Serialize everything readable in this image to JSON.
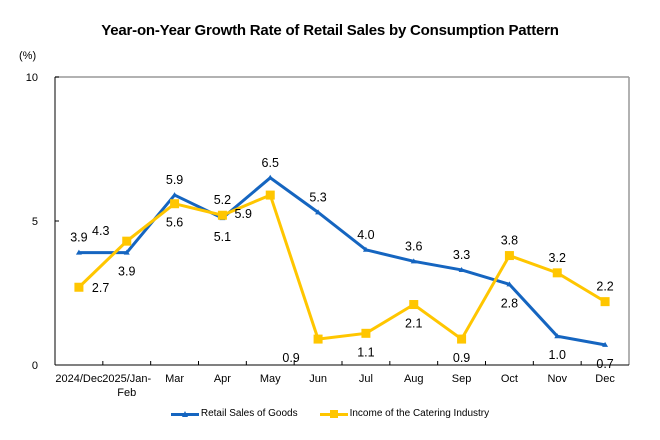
{
  "chart_data": {
    "type": "line",
    "title": "Year-on-Year Growth Rate of Retail Sales by Consumption Pattern",
    "ylabel": "(%)",
    "xlabel": "",
    "ylim": [
      0,
      10
    ],
    "yticks": [
      "0",
      "5",
      "10"
    ],
    "ytick_values": [
      0,
      5,
      10
    ],
    "grid": false,
    "legend_position": "bottom",
    "categories": [
      "2024/Dec",
      "2025/Jan-Feb",
      "Mar",
      "Apr",
      "May",
      "Jun",
      "Jul",
      "Aug",
      "Sep",
      "Oct",
      "Nov",
      "Dec"
    ],
    "category_lines": [
      [
        "2024/Dec"
      ],
      [
        "2025/Jan-",
        "Feb"
      ],
      [
        "Mar"
      ],
      [
        "Apr"
      ],
      [
        "May"
      ],
      [
        "Jun"
      ],
      [
        "Jul"
      ],
      [
        "Aug"
      ],
      [
        "Sep"
      ],
      [
        "Oct"
      ],
      [
        "Nov"
      ],
      [
        "Dec"
      ]
    ],
    "series": [
      {
        "name": "Retail Sales of Goods",
        "color": "#1565C0",
        "marker": "triangle",
        "values": [
          3.9,
          3.9,
          5.9,
          5.1,
          6.5,
          5.3,
          4.0,
          3.6,
          3.3,
          2.8,
          1.0,
          0.7
        ],
        "labels": [
          "3.9",
          "3.9",
          "5.9",
          "5.1",
          "6.5",
          "5.3",
          "4.0",
          "3.6",
          "3.3",
          "2.8",
          "1.0",
          "0.7"
        ],
        "label_pos": [
          "above",
          "below",
          "above",
          "below",
          "above",
          "above",
          "above",
          "above",
          "above",
          "below",
          "below",
          "below"
        ]
      },
      {
        "name": "Income of the Catering Industry",
        "color": "#FFC600",
        "marker": "square",
        "values": [
          2.7,
          4.3,
          5.6,
          5.2,
          5.9,
          0.9,
          1.1,
          2.1,
          0.9,
          3.8,
          3.2,
          2.2
        ],
        "labels": [
          "2.7",
          "4.3",
          "5.6",
          "5.2",
          "5.9",
          "0.9",
          "1.1",
          "2.1",
          "0.9",
          "3.8",
          "3.2",
          "2.2"
        ],
        "label_pos": [
          "right",
          "above-left",
          "below",
          "above",
          "below-left",
          "below-left",
          "below",
          "below",
          "below",
          "above",
          "above",
          "above"
        ]
      }
    ]
  }
}
